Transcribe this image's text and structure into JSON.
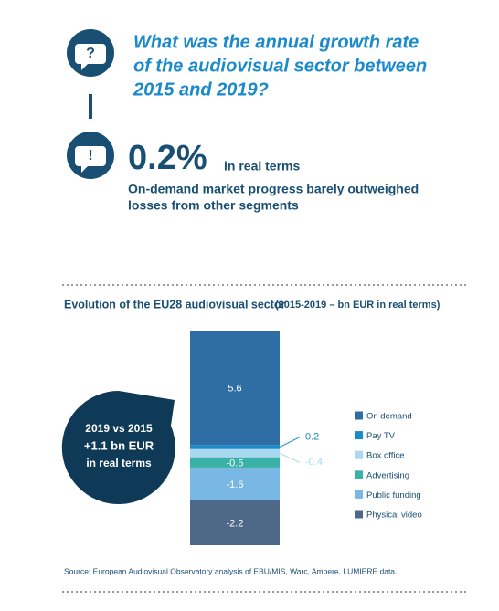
{
  "header": {
    "question": [
      "What was the annual growth rate",
      "of the audiovisual sector between",
      "2015 and 2019?"
    ],
    "answer": "0.2%",
    "answer_note": "in real terms",
    "answer_text": [
      "On-demand market progress barely outweighed",
      "losses from other segments"
    ]
  },
  "chart_data": {
    "type": "stacked-bar",
    "title": "Evolution of the EU28 audiovisual sector",
    "subtitle": "(2015-2019 – bn EUR in real terms)",
    "categories": [
      "On demand",
      "Pay TV",
      "Box office",
      "Advertising",
      "Public funding",
      "Physical video"
    ],
    "values": [
      5.6,
      0.2,
      -0.4,
      -0.5,
      -1.6,
      -2.2
    ],
    "colors": [
      "#2f6ea5",
      "#1a8acb",
      "#a8d9f1",
      "#3ab2a5",
      "#79b7e4",
      "#4e6988"
    ],
    "callout": [
      "2019 vs 2015",
      "+1.1 bn EUR",
      "in real terms"
    ],
    "source": "Source: European Audiovisual Observatory analysis of EBU/MIS, Warc, Ampere, LUMIERE data."
  }
}
